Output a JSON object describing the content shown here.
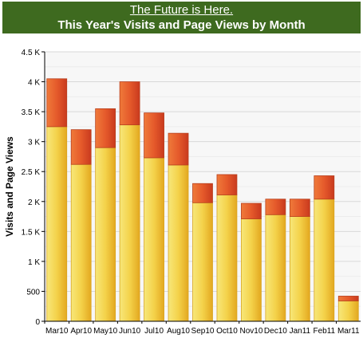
{
  "header": {
    "link_title": "The Future is Here.",
    "title": "This Year's Visits and Page Views by Month"
  },
  "chart_data": {
    "type": "bar",
    "stacked": true,
    "title": "This Year's Visits and Page Views by Month",
    "ylabel": "Visits and Page Views",
    "xlabel": "",
    "ylim": [
      0,
      4500
    ],
    "y_ticks": [
      0,
      500,
      1000,
      1500,
      2000,
      2500,
      3000,
      3500,
      4000,
      4500
    ],
    "y_tick_labels": [
      "0",
      "500",
      "1 K",
      "1.5 K",
      "2 K",
      "2.5 K",
      "3 K",
      "3.5 K",
      "4 K",
      "4.5 K"
    ],
    "grid": true,
    "categories": [
      "Mar10",
      "Apr10",
      "May10",
      "Jun10",
      "Jul10",
      "Aug10",
      "Sep10",
      "Oct10",
      "Nov10",
      "Dec10",
      "Jan11",
      "Feb11",
      "Mar11"
    ],
    "series": [
      {
        "values": [
          3250,
          2620,
          2900,
          3280,
          2730,
          2610,
          1980,
          2110,
          1710,
          1780,
          1750,
          2040,
          340
        ],
        "color": "#f2c83a"
      },
      {
        "values": [
          800,
          580,
          650,
          720,
          750,
          530,
          320,
          340,
          260,
          260,
          290,
          390,
          80
        ],
        "color": "#e0502a"
      }
    ]
  }
}
